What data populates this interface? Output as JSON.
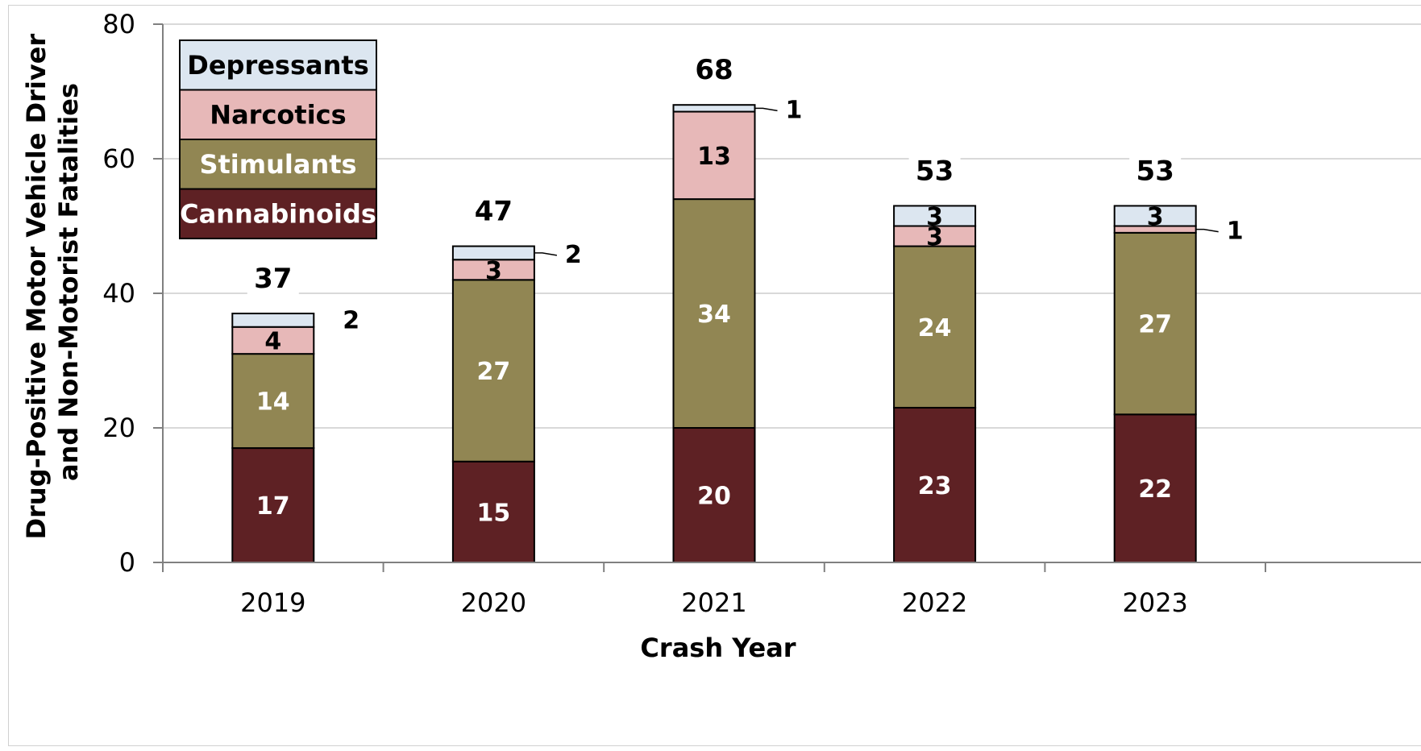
{
  "chart_data": {
    "type": "bar",
    "stacked": true,
    "categories": [
      "2019",
      "2020",
      "2021",
      "2022",
      "2023"
    ],
    "series": [
      {
        "name": "Cannabinoids",
        "values": [
          17,
          15,
          20,
          23,
          22
        ],
        "color": "#5e2124",
        "label_color": "#ffffff"
      },
      {
        "name": "Stimulants",
        "values": [
          14,
          27,
          34,
          24,
          27
        ],
        "color": "#918653",
        "label_color": "#ffffff"
      },
      {
        "name": "Narcotics",
        "values": [
          4,
          3,
          13,
          3,
          1
        ],
        "color": "#e7b8b8",
        "label_color": "#000000"
      },
      {
        "name": "Depressants",
        "values": [
          2,
          2,
          1,
          3,
          3
        ],
        "color": "#dce6f0",
        "label_color": "#000000"
      }
    ],
    "totals": [
      37,
      47,
      68,
      53,
      53
    ],
    "title": "",
    "xlabel": "Crash Year",
    "ylabel": [
      "Drug-Positive Motor Vehicle Driver",
      "and Non-Motorist Fatalities"
    ],
    "ylim": [
      0,
      80
    ],
    "yticks": [
      0,
      20,
      40,
      60,
      80
    ],
    "grid": true,
    "legend_position": "top-left"
  }
}
